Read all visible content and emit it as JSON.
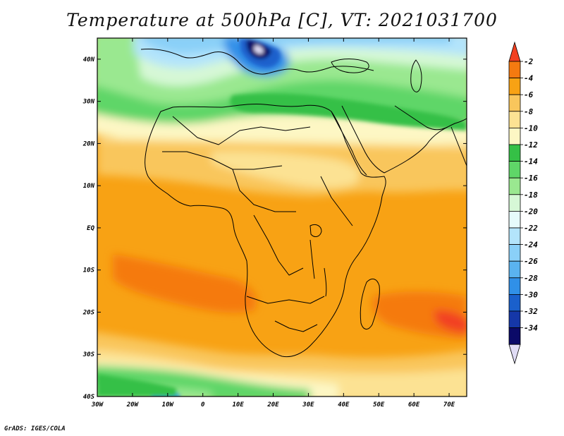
{
  "title": "Temperature at 500hPa [C], VT: 2021031700",
  "credit": "GrADS: IGES/COLA",
  "map": {
    "lat_labels": [
      "40N",
      "30N",
      "20N",
      "10N",
      "EQ",
      "10S",
      "20S",
      "30S",
      "40S"
    ],
    "lon_labels": [
      "30W",
      "20W",
      "10W",
      "0",
      "10E",
      "20E",
      "30E",
      "40E",
      "50E",
      "60E",
      "70E"
    ],
    "lat_range": [
      -40,
      45
    ],
    "lon_range": [
      -30,
      75
    ]
  },
  "colorbar": {
    "labels": [
      "-2",
      "-4",
      "-6",
      "-8",
      "-10",
      "-12",
      "-14",
      "-16",
      "-18",
      "-20",
      "-22",
      "-24",
      "-26",
      "-28",
      "-30",
      "-32",
      "-34"
    ],
    "colors": [
      "#f24020",
      "#f57a10",
      "#f8a214",
      "#f9c65c",
      "#fce293",
      "#fdf7c4",
      "#35c046",
      "#5fd668",
      "#9ae890",
      "#d6f8d6",
      "#e6fbfb",
      "#b3e4fb",
      "#8ad0f8",
      "#5ab3f0",
      "#3090e8",
      "#1a60cc",
      "#1537a8",
      "#0b0a68",
      "#e0dcf5"
    ]
  },
  "colors": {
    "warm_orange": "#f8a214",
    "deep_orange": "#f57a10",
    "red": "#f24020",
    "tan": "#f9c65c",
    "light_tan": "#fce293",
    "cream": "#fdf7c4",
    "green": "#35c046",
    "blue": "#3090e8",
    "navy": "#0b0a68"
  }
}
